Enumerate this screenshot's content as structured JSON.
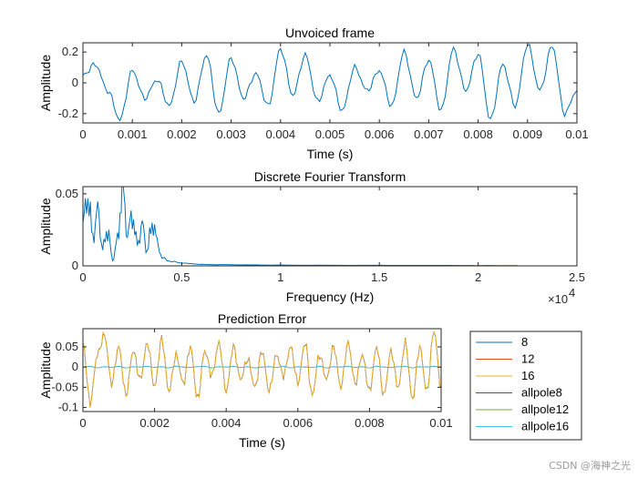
{
  "chart_data": [
    {
      "type": "line",
      "title": "Unvoiced frame",
      "xlabel": "Time (s)",
      "ylabel": "Amplitude",
      "xlim": [
        0,
        0.01
      ],
      "ylim": [
        -0.26,
        0.26
      ],
      "xticks": [
        "0",
        "0.001",
        "0.002",
        "0.003",
        "0.004",
        "0.005",
        "0.006",
        "0.007",
        "0.008",
        "0.009",
        "0.01"
      ],
      "yticks": [
        "0.2",
        "0",
        "-0.2"
      ],
      "series": [
        {
          "name": "frame",
          "color": "#0072BD",
          "x": [
            0,
            0.00025,
            0.0005,
            0.00075,
            0.001,
            0.00125,
            0.0015,
            0.00175,
            0.002,
            0.00225,
            0.0025,
            0.00275,
            0.003,
            0.00325,
            0.0035,
            0.00375,
            0.004,
            0.00425,
            0.0045,
            0.00475,
            0.005,
            0.00525,
            0.0055,
            0.00575,
            0.006,
            0.00625,
            0.0065,
            0.00675,
            0.007,
            0.00725,
            0.0075,
            0.00775,
            0.008,
            0.00825,
            0.0085,
            0.00875,
            0.009,
            0.00925,
            0.0095,
            0.00975,
            0.01
          ],
          "values": [
            0.05,
            0.12,
            -0.05,
            -0.24,
            0.08,
            -0.1,
            0.02,
            -0.15,
            0.14,
            -0.12,
            0.18,
            -0.2,
            0.16,
            -0.1,
            0.06,
            -0.15,
            0.22,
            -0.08,
            0.18,
            -0.12,
            0.05,
            -0.18,
            0.1,
            -0.05,
            0.08,
            -0.15,
            0.2,
            -0.1,
            0.15,
            -0.18,
            0.22,
            -0.05,
            0.19,
            -0.24,
            0.12,
            -0.15,
            0.25,
            -0.05,
            0.24,
            -0.2,
            -0.05
          ]
        }
      ]
    },
    {
      "type": "line",
      "title": "Discrete Fourier Transform",
      "xlabel": "Frequency (Hz)",
      "ylabel": "Amplitude",
      "xlim": [
        0,
        25000
      ],
      "ylim": [
        0,
        0.055
      ],
      "xticks": [
        "0",
        "0.5",
        "1",
        "1.5",
        "2",
        "2.5"
      ],
      "yticks": [
        "0.05",
        "0"
      ],
      "exponent_label": "×10",
      "exponent_power": "4",
      "series": [
        {
          "name": "dft",
          "color": "#0072BD",
          "x": [
            0,
            250,
            500,
            750,
            1000,
            1250,
            1500,
            1750,
            2000,
            2250,
            2500,
            2750,
            3000,
            3250,
            3500,
            3750,
            4000,
            4500,
            5000,
            5500,
            6000,
            7000,
            8000,
            9000,
            10000,
            12000,
            14000,
            16000,
            18000,
            20000,
            22000
          ],
          "values": [
            0.03,
            0.048,
            0.02,
            0.038,
            0.012,
            0.025,
            0.004,
            0.018,
            0.055,
            0.022,
            0.035,
            0.015,
            0.028,
            0.01,
            0.03,
            0.018,
            0.005,
            0.003,
            0.002,
            0.0015,
            0.001,
            0.0008,
            0.0007,
            0.0006,
            0.0005,
            0.0004,
            0.0004,
            0.0003,
            0.0003,
            0.0002,
            0.0002
          ]
        }
      ]
    },
    {
      "type": "line",
      "title": "Prediction Error",
      "xlabel": "Time (s)",
      "ylabel": "Amplitude",
      "xlim": [
        0,
        0.01
      ],
      "ylim": [
        -0.11,
        0.095
      ],
      "xticks": [
        "0",
        "0.002",
        "0.004",
        "0.006",
        "0.008",
        "0.01"
      ],
      "yticks": [
        "0.05",
        "0",
        "-0.05",
        "-0.1"
      ],
      "legend_position": "outside-right",
      "series": [
        {
          "name": "8",
          "color": "#0072BD",
          "values_key": "error"
        },
        {
          "name": "12",
          "color": "#D95319",
          "values_key": "error"
        },
        {
          "name": "16",
          "color": "#EDB120",
          "values_key": "error"
        },
        {
          "name": "allpole8",
          "color": "#7E2F8E",
          "values_key": "flat"
        },
        {
          "name": "allpole12",
          "color": "#77AC30",
          "values_key": "flat"
        },
        {
          "name": "allpole16",
          "color": "#4DBEEE",
          "values_key": "flat"
        }
      ],
      "error_x": [
        0,
        0.0002,
        0.0004,
        0.0006,
        0.0008,
        0.001,
        0.0012,
        0.0014,
        0.0016,
        0.0018,
        0.002,
        0.0022,
        0.0024,
        0.0026,
        0.0028,
        0.003,
        0.0032,
        0.0034,
        0.0036,
        0.0038,
        0.004,
        0.0042,
        0.0044,
        0.0046,
        0.0048,
        0.005,
        0.0052,
        0.0054,
        0.0056,
        0.0058,
        0.006,
        0.0062,
        0.0064,
        0.0066,
        0.0068,
        0.007,
        0.0072,
        0.0074,
        0.0076,
        0.0078,
        0.008,
        0.0082,
        0.0084,
        0.0086,
        0.0088,
        0.009,
        0.0092,
        0.0094,
        0.0096,
        0.0098,
        0.01
      ],
      "error_values": [
        0.06,
        -0.09,
        0.03,
        0.08,
        -0.04,
        0.05,
        -0.07,
        0.04,
        -0.03,
        0.06,
        -0.05,
        0.07,
        -0.06,
        0.03,
        -0.04,
        0.05,
        -0.08,
        0.04,
        -0.02,
        0.06,
        -0.06,
        0.05,
        -0.03,
        0.02,
        -0.05,
        0.04,
        -0.06,
        0.03,
        -0.02,
        0.05,
        -0.04,
        0.06,
        -0.07,
        0.03,
        -0.03,
        0.05,
        -0.05,
        0.06,
        -0.04,
        0.03,
        -0.06,
        0.05,
        -0.07,
        0.04,
        -0.05,
        0.06,
        -0.08,
        0.05,
        -0.06,
        0.09,
        -0.05
      ],
      "flat_values": [
        0.0,
        0.002,
        -0.002,
        0.001,
        -0.001,
        0.002,
        -0.002,
        0.001,
        0.0,
        0.002,
        -0.001,
        0.001,
        -0.002,
        0.002,
        0.0,
        -0.001,
        0.001,
        0.002,
        -0.002,
        0.001,
        0.0,
        0.002,
        -0.001,
        0.001,
        -0.002,
        0.0,
        0.001,
        -0.001,
        0.002,
        -0.002,
        0.001,
        0.0,
        -0.001,
        0.002,
        -0.002,
        0.001,
        0.0,
        0.002,
        -0.001,
        0.001,
        -0.002,
        0.002,
        0.0,
        -0.001,
        0.001,
        0.002,
        -0.002,
        0.001,
        0.0,
        0.002,
        -0.001
      ]
    }
  ],
  "watermark": "CSDN @海神之光"
}
